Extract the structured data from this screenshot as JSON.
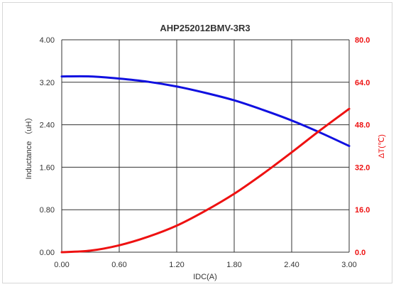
{
  "chart_data": {
    "type": "line",
    "title": "AHP252012BMV-3R3",
    "xlabel": "IDC(A)",
    "ylabel": "Inductance （uH）",
    "y2label": "ΔT(℃)",
    "xlim": [
      0,
      3.0
    ],
    "ylim": [
      0,
      4.0
    ],
    "y2lim": [
      0,
      80.0
    ],
    "x_ticks": [
      "0.00",
      "0.60",
      "1.20",
      "1.80",
      "2.40",
      "3.00"
    ],
    "y_ticks": [
      "0.00",
      "0.80",
      "1.60",
      "2.40",
      "3.20",
      "4.00"
    ],
    "y2_ticks": [
      "0.0",
      "16.0",
      "32.0",
      "48.0",
      "64.0",
      "80.0"
    ],
    "grid": true,
    "series": [
      {
        "axis": "left",
        "color": "#1010e0",
        "x": [
          0,
          0.3,
          0.6,
          0.9,
          1.2,
          1.5,
          1.8,
          2.1,
          2.4,
          2.7,
          3.0
        ],
        "values": [
          3.31,
          3.31,
          3.27,
          3.21,
          3.12,
          3.0,
          2.86,
          2.68,
          2.48,
          2.25,
          2.0
        ]
      },
      {
        "axis": "right",
        "color": "#ee1111",
        "x": [
          0,
          0.3,
          0.6,
          0.9,
          1.2,
          1.5,
          1.8,
          2.1,
          2.4,
          2.7,
          3.0
        ],
        "values": [
          0,
          0.6,
          2.6,
          5.8,
          10.0,
          15.6,
          22.0,
          29.5,
          37.6,
          46.0,
          54.0
        ]
      }
    ]
  },
  "colors": {
    "left_axis_text": "#333333",
    "right_axis_text": "#ee1111",
    "grid": "#333333"
  }
}
